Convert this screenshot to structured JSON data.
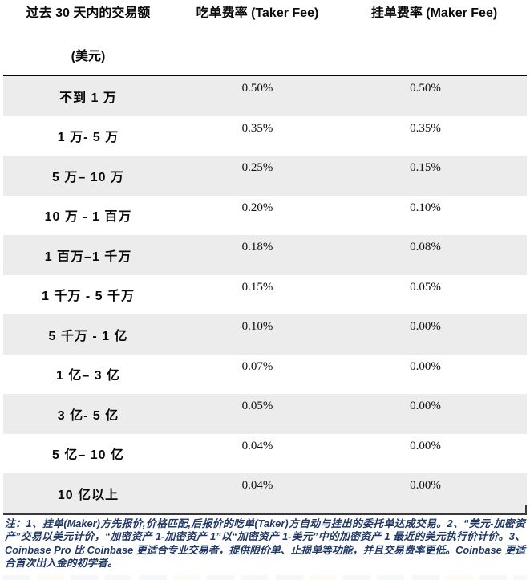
{
  "table": {
    "header": {
      "volume_line1": "过去 30 天内的交易额",
      "volume_line2": "(美元)",
      "taker": "吃单费率 (Taker Fee)",
      "maker": "挂单费率 (Maker Fee)"
    },
    "rows": [
      {
        "tier": "不到 1 万",
        "taker": "0.50%",
        "maker": "0.50%"
      },
      {
        "tier": "1 万- 5 万",
        "taker": "0.35%",
        "maker": "0.35%"
      },
      {
        "tier": "5 万– 10 万",
        "taker": "0.25%",
        "maker": "0.15%"
      },
      {
        "tier": "10 万 - 1 百万",
        "taker": "0.20%",
        "maker": "0.10%"
      },
      {
        "tier": "1 百万–1 千万",
        "taker": "0.18%",
        "maker": "0.08%"
      },
      {
        "tier": "1 千万 - 5 千万",
        "taker": "0.15%",
        "maker": "0.05%"
      },
      {
        "tier": "5 千万 - 1 亿",
        "taker": "0.10%",
        "maker": "0.00%"
      },
      {
        "tier": "1 亿– 3 亿",
        "taker": "0.07%",
        "maker": "0.00%"
      },
      {
        "tier": "3 亿- 5 亿",
        "taker": "0.05%",
        "maker": "0.00%"
      },
      {
        "tier": "5 亿– 10 亿",
        "taker": "0.04%",
        "maker": "0.00%"
      },
      {
        "tier": "10 亿以上",
        "taker": "0.04%",
        "maker": "0.00%"
      }
    ]
  },
  "footnote": {
    "text": "注：1、挂单(Maker)方先报价,价格匹配,后报价的吃单(Taker)方自动与挂出的委托单达成交易。2、“美元-加密资产”交易以美元计价，“加密资产 1-加密资产 1”以“加密资产 1-美元”中的加密资产 1 最近的美元执行价计价。3、Coinbase Pro 比 Coinbase 更适合专业交易者，提供限价单、止损单等功能，并且交易费率更低。Coinbase 更适合首次出入金的初学者。"
  },
  "colors": {
    "stripe": "#ececec",
    "header_rule": "#000000",
    "footnote_rule": "#3a3a3e",
    "footnote_text": "#1f3864",
    "body_text": "#101010"
  }
}
